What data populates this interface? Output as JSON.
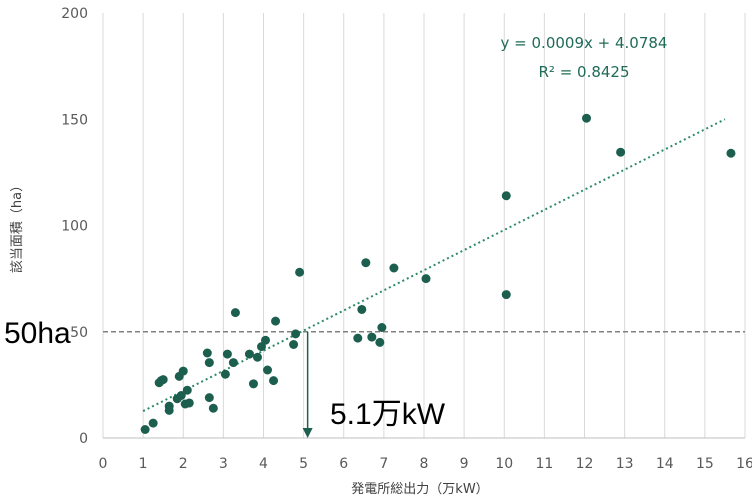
{
  "colors": {
    "point": "#1d5f4e",
    "trendline": "#2e8b68",
    "gridline": "#d9d9d9",
    "axis": "#bfbfbf",
    "threshold_line": "#808080",
    "arrow": "#1d5f4e"
  },
  "chart_data": {
    "type": "scatter",
    "xlabel": "発電所総出力（万kW）",
    "ylabel": "該当面積（ha）",
    "xlim": [
      0,
      16
    ],
    "ylim": [
      0,
      200
    ],
    "x_ticks": [
      "0",
      "1",
      "2",
      "3",
      "4",
      "5",
      "6",
      "7",
      "8",
      "9",
      "10",
      "11",
      "12",
      "13",
      "14",
      "15",
      "16"
    ],
    "y_ticks": [
      "0",
      "50",
      "100",
      "150",
      "200"
    ],
    "grid": "vertical",
    "points": [
      {
        "x": 1.05,
        "y": 4
      },
      {
        "x": 1.25,
        "y": 7
      },
      {
        "x": 1.4,
        "y": 26
      },
      {
        "x": 1.45,
        "y": 27
      },
      {
        "x": 1.5,
        "y": 27.5
      },
      {
        "x": 1.65,
        "y": 13
      },
      {
        "x": 1.65,
        "y": 15
      },
      {
        "x": 1.85,
        "y": 18.5
      },
      {
        "x": 1.9,
        "y": 29
      },
      {
        "x": 1.95,
        "y": 20
      },
      {
        "x": 2.0,
        "y": 31.5
      },
      {
        "x": 2.05,
        "y": 16
      },
      {
        "x": 2.1,
        "y": 22.5
      },
      {
        "x": 2.15,
        "y": 16.5
      },
      {
        "x": 2.6,
        "y": 40
      },
      {
        "x": 2.65,
        "y": 35.5
      },
      {
        "x": 2.65,
        "y": 19
      },
      {
        "x": 2.75,
        "y": 14
      },
      {
        "x": 3.05,
        "y": 30
      },
      {
        "x": 3.1,
        "y": 39.5
      },
      {
        "x": 3.25,
        "y": 35.5
      },
      {
        "x": 3.3,
        "y": 59
      },
      {
        "x": 3.65,
        "y": 39.5
      },
      {
        "x": 3.75,
        "y": 25.5
      },
      {
        "x": 3.85,
        "y": 38
      },
      {
        "x": 3.95,
        "y": 43
      },
      {
        "x": 4.05,
        "y": 46
      },
      {
        "x": 4.1,
        "y": 32
      },
      {
        "x": 4.25,
        "y": 27
      },
      {
        "x": 4.3,
        "y": 55
      },
      {
        "x": 4.75,
        "y": 44
      },
      {
        "x": 4.8,
        "y": 49
      },
      {
        "x": 4.9,
        "y": 78
      },
      {
        "x": 6.35,
        "y": 47
      },
      {
        "x": 6.45,
        "y": 60.5
      },
      {
        "x": 6.55,
        "y": 82.5
      },
      {
        "x": 6.7,
        "y": 47.5
      },
      {
        "x": 6.9,
        "y": 45
      },
      {
        "x": 6.95,
        "y": 52
      },
      {
        "x": 7.25,
        "y": 80
      },
      {
        "x": 8.05,
        "y": 75
      },
      {
        "x": 10.05,
        "y": 114
      },
      {
        "x": 10.05,
        "y": 67.5
      },
      {
        "x": 12.05,
        "y": 150.5
      },
      {
        "x": 12.9,
        "y": 134.5
      },
      {
        "x": 15.65,
        "y": 134
      }
    ],
    "trendline": {
      "type": "linear-dotted",
      "x_range": [
        1,
        15.5
      ],
      "equation": "y = 0.0009x + 4.0784",
      "r_squared": "R² = 0.8425"
    },
    "annotations": {
      "threshold_label": "50ha",
      "threshold_y": 50,
      "target_label": "5.1万kW",
      "target_x": 5.1
    }
  }
}
